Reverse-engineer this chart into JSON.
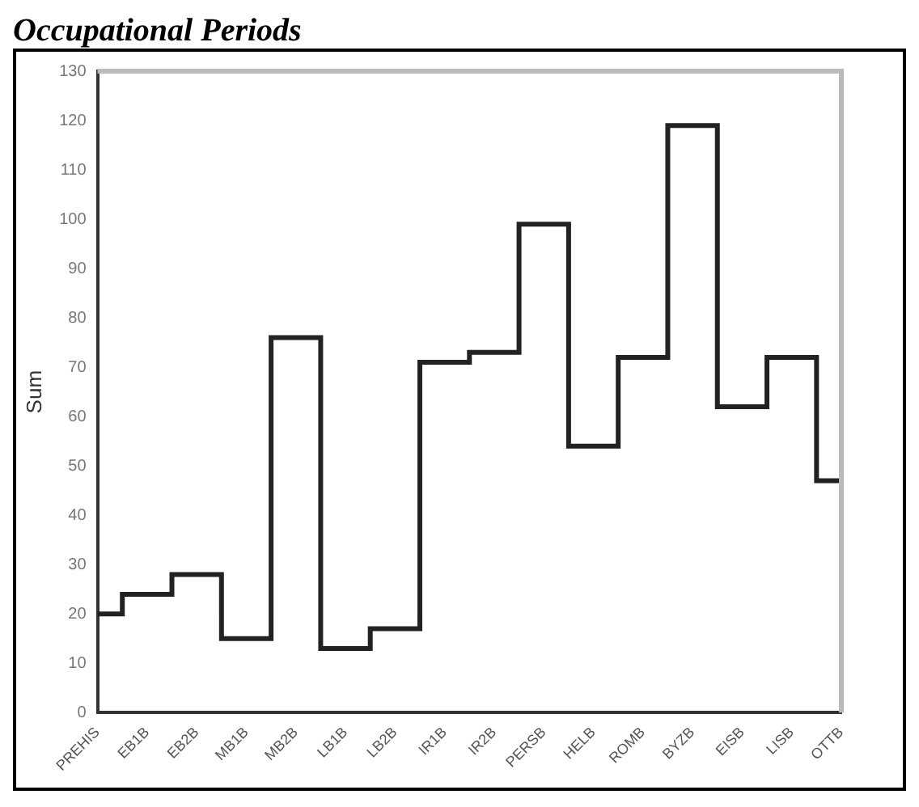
{
  "chart_data": {
    "type": "step",
    "title": "Occupational Periods",
    "ylabel": "Sum",
    "categories": [
      "PREHIS",
      "EB1B",
      "EB2B",
      "MB1B",
      "MB2B",
      "LB1B",
      "LB2B",
      "IR1B",
      "IR2B",
      "PERSB",
      "HELB",
      "ROMB",
      "BYZB",
      "EISB",
      "LISB",
      "OTTB"
    ],
    "values": [
      20,
      24,
      28,
      15,
      76,
      13,
      17,
      71,
      73,
      99,
      54,
      72,
      119,
      62,
      72,
      47
    ],
    "color": "#222222",
    "ylim": [
      0,
      130
    ],
    "yticks": [
      0,
      10,
      20,
      30,
      40,
      50,
      60,
      70,
      80,
      90,
      100,
      110,
      120,
      130
    ]
  }
}
